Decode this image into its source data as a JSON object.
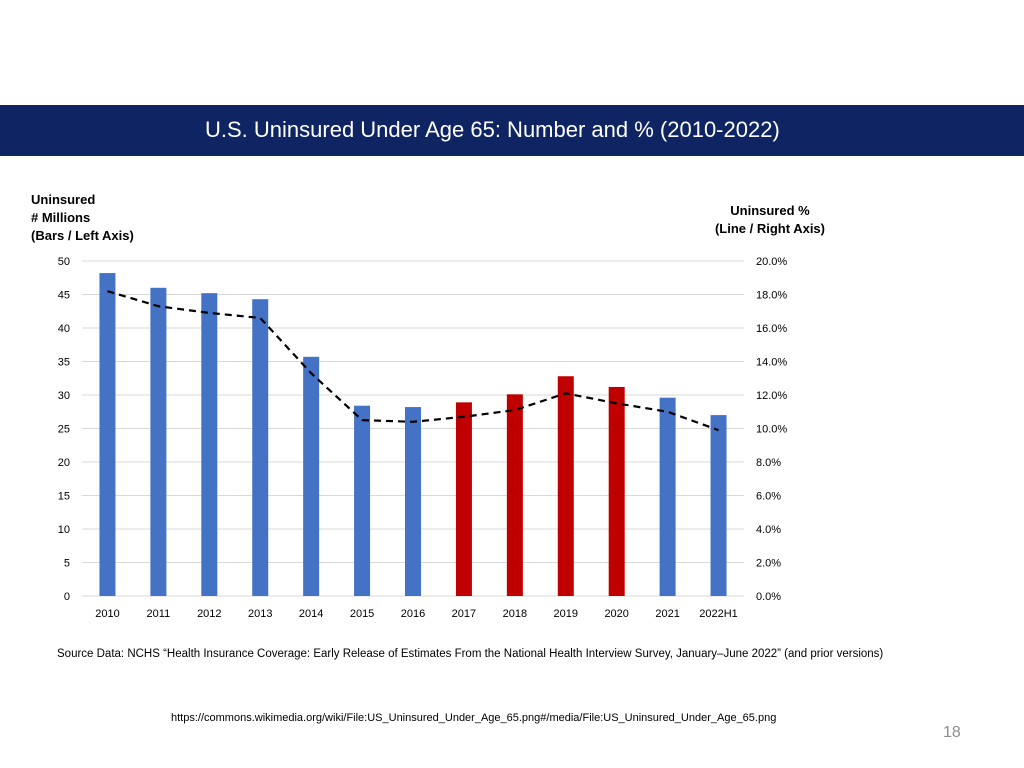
{
  "slide": {
    "title": "U.S. Uninsured Under Age 65:  Number and % (2010-2022)",
    "source_note": "Source Data:  NCHS “Health Insurance Coverage: Early Release of Estimates From the National Health Interview Survey, January–June 2022” (and prior versions)",
    "url": "https://commons.wikimedia.org/wiki/File:US_Uninsured_Under_Age_65.png#/media/File:US_Uninsured_Under_Age_65.png",
    "page_number": "18",
    "title_bar_color": "#0f2563"
  },
  "chart_data": {
    "type": "bar",
    "left_axis_label": [
      "Uninsured",
      "# Millions",
      "(Bars / Left Axis)"
    ],
    "right_axis_label": [
      "Uninsured %",
      "(Line / Right Axis)"
    ],
    "categories": [
      "2010",
      "2011",
      "2012",
      "2013",
      "2014",
      "2015",
      "2016",
      "2017",
      "2018",
      "2019",
      "2020",
      "2021",
      "2022H1"
    ],
    "bars": {
      "values": [
        48.2,
        46.0,
        45.2,
        44.3,
        35.7,
        28.4,
        28.2,
        28.9,
        30.1,
        32.8,
        31.2,
        29.6,
        27.0
      ],
      "highlighted": [
        false,
        false,
        false,
        false,
        false,
        false,
        false,
        true,
        true,
        true,
        true,
        false,
        false
      ]
    },
    "line": {
      "style": "dashed",
      "values": [
        18.2,
        17.3,
        16.9,
        16.6,
        13.3,
        10.5,
        10.4,
        10.7,
        11.1,
        12.1,
        11.5,
        11.0,
        9.9
      ]
    },
    "left_ylim": [
      0,
      50
    ],
    "left_ticks": [
      "0",
      "5",
      "10",
      "15",
      "20",
      "25",
      "30",
      "35",
      "40",
      "45",
      "50"
    ],
    "right_ylim": [
      0,
      20
    ],
    "right_ticks": [
      "0.0%",
      "2.0%",
      "4.0%",
      "6.0%",
      "8.0%",
      "10.0%",
      "12.0%",
      "14.0%",
      "16.0%",
      "18.0%",
      "20.0%"
    ],
    "grid": true,
    "colors": {
      "bar": "#4472c4",
      "bar_highlight": "#c00000",
      "line": "#000000",
      "grid": "#d9d9d9"
    }
  }
}
